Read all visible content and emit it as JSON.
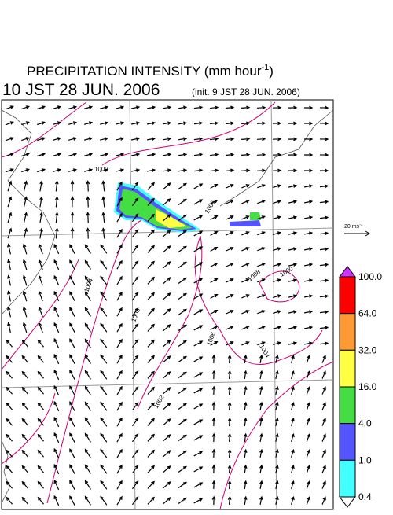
{
  "header": {
    "title": "PRECIPITATION INTENSITY (mm hour",
    "title_sup": "-1",
    "title_end": ")",
    "valid_time": "10 JST 28 JUN. 2006",
    "init_time": "(init. 9 JST 28 JUN. 2006)"
  },
  "reference_vector": {
    "label": "20 ms",
    "label_sup": "-1"
  },
  "colorbar": {
    "labels": [
      "100.0",
      "64.0",
      "32.0",
      "16.0",
      "4.0",
      "1.0",
      "0.4"
    ],
    "colors": [
      "#ff0000",
      "#ff9933",
      "#ffff44",
      "#44dd44",
      "#5555ff",
      "#44ffff"
    ],
    "over_color": "#cc33ff",
    "under_color": "#ffffff"
  },
  "contour_labels": [
    "1002",
    "1006",
    "1008",
    "1004",
    "1008",
    "1006",
    "1004",
    "1002",
    "1000"
  ]
}
